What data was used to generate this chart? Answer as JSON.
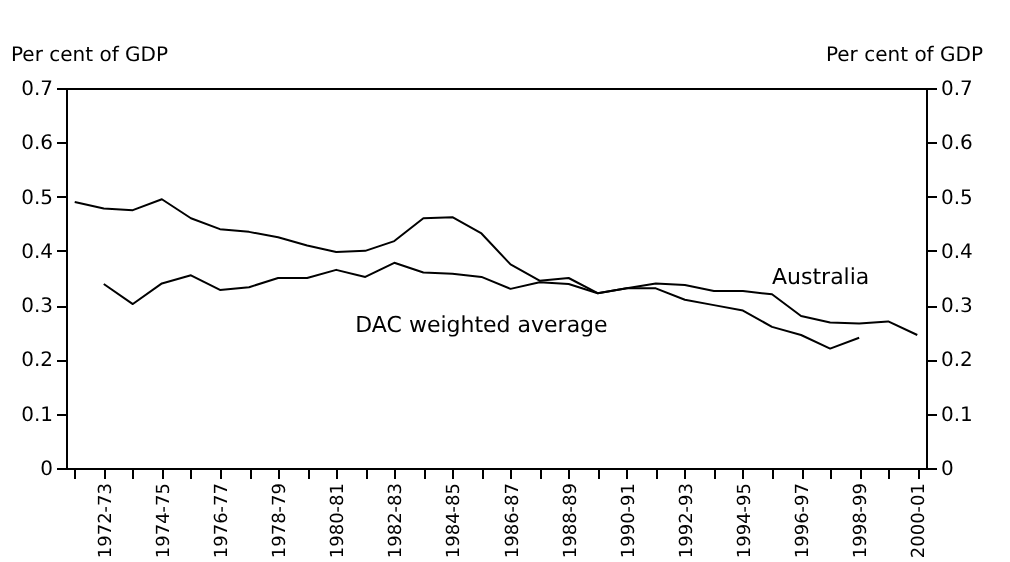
{
  "chart_data": {
    "type": "line",
    "categories": [
      null,
      "1972-73",
      null,
      "1974-75",
      null,
      "1976-77",
      null,
      "1978-79",
      null,
      "1980-81",
      null,
      "1982-83",
      null,
      "1984-85",
      null,
      "1986-87",
      null,
      "1988-89",
      null,
      "1990-91",
      null,
      "1992-93",
      null,
      "1994-95",
      null,
      "1996-97",
      null,
      "1998-99",
      null,
      "2000-01"
    ],
    "series": [
      {
        "name": "Australia",
        "color": "#000000",
        "values": [
          0.49,
          0.478,
          0.475,
          0.495,
          0.46,
          0.44,
          0.435,
          0.425,
          0.41,
          0.398,
          0.4,
          0.418,
          0.46,
          0.462,
          0.432,
          0.375,
          0.345,
          0.35,
          0.322,
          0.331,
          0.34,
          0.337,
          0.326,
          0.326,
          0.32,
          0.28,
          0.268,
          0.266,
          0.27,
          0.245
        ]
      },
      {
        "name": "DAC weighted average",
        "color": "#000000",
        "values": [
          null,
          0.339,
          0.302,
          0.34,
          0.355,
          0.328,
          0.333,
          0.35,
          0.35,
          0.365,
          0.352,
          0.378,
          0.36,
          0.358,
          0.352,
          0.33,
          0.342,
          0.339,
          0.322,
          0.331,
          0.331,
          0.31,
          0.3,
          0.29,
          0.26,
          0.245,
          0.22,
          0.24,
          null,
          null
        ]
      }
    ],
    "ylabel": "Per cent of GDP",
    "y2label": "Per cent of GDP",
    "ylim": [
      0,
      0.7
    ],
    "yticks": [
      0,
      0.1,
      0.2,
      0.3,
      0.4,
      0.5,
      0.6,
      0.7
    ],
    "y2lim": [
      0,
      0.7
    ],
    "y2ticks": [
      0,
      0.1,
      0.2,
      0.3,
      0.4,
      0.5,
      0.6,
      0.7
    ],
    "grid": false,
    "line_style": "solid"
  }
}
